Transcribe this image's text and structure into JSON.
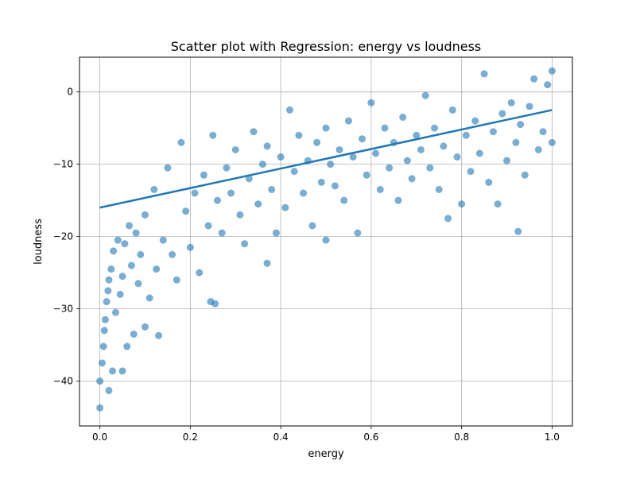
{
  "chart_data": {
    "type": "scatter",
    "title": "Scatter plot with Regression: energy vs loudness",
    "xlabel": "energy",
    "ylabel": "loudness",
    "xlim": [
      -0.045,
      1.045
    ],
    "ylim": [
      -46.2,
      4.8
    ],
    "xticks": [
      0.0,
      0.2,
      0.4,
      0.6,
      0.8,
      1.0
    ],
    "xtick_labels": [
      "0.0",
      "0.2",
      "0.4",
      "0.6",
      "0.8",
      "1.0"
    ],
    "yticks": [
      -40,
      -30,
      -20,
      -10,
      0
    ],
    "ytick_labels": [
      "−40",
      "−30",
      "−20",
      "−10",
      "0"
    ],
    "grid": true,
    "point_color": "#1f77b4",
    "point_alpha": 0.6,
    "regression_color": "#1f77b4",
    "regression_line": {
      "x": [
        0.0,
        1.0
      ],
      "y": [
        -16.0,
        -2.5
      ]
    },
    "points": [
      [
        0.0,
        -43.7
      ],
      [
        0.0,
        -40.0
      ],
      [
        0.005,
        -37.5
      ],
      [
        0.008,
        -35.2
      ],
      [
        0.01,
        -33.0
      ],
      [
        0.012,
        -31.5
      ],
      [
        0.015,
        -29.0
      ],
      [
        0.018,
        -27.5
      ],
      [
        0.02,
        -41.3
      ],
      [
        0.02,
        -26.0
      ],
      [
        0.025,
        -24.5
      ],
      [
        0.028,
        -38.6
      ],
      [
        0.03,
        -22.0
      ],
      [
        0.035,
        -30.5
      ],
      [
        0.04,
        -20.5
      ],
      [
        0.045,
        -28.0
      ],
      [
        0.05,
        -25.5
      ],
      [
        0.05,
        -38.6
      ],
      [
        0.055,
        -21.0
      ],
      [
        0.06,
        -35.2
      ],
      [
        0.065,
        -18.5
      ],
      [
        0.07,
        -24.0
      ],
      [
        0.075,
        -33.5
      ],
      [
        0.08,
        -19.5
      ],
      [
        0.085,
        -26.5
      ],
      [
        0.09,
        -22.5
      ],
      [
        0.1,
        -32.5
      ],
      [
        0.1,
        -17.0
      ],
      [
        0.11,
        -28.5
      ],
      [
        0.12,
        -13.5
      ],
      [
        0.125,
        -24.5
      ],
      [
        0.13,
        -33.7
      ],
      [
        0.14,
        -20.5
      ],
      [
        0.15,
        -10.5
      ],
      [
        0.16,
        -22.5
      ],
      [
        0.17,
        -26.0
      ],
      [
        0.18,
        -7.0
      ],
      [
        0.19,
        -16.5
      ],
      [
        0.2,
        -21.5
      ],
      [
        0.21,
        -14.0
      ],
      [
        0.22,
        -25.0
      ],
      [
        0.23,
        -11.5
      ],
      [
        0.24,
        -18.5
      ],
      [
        0.245,
        -29.0
      ],
      [
        0.25,
        -6.0
      ],
      [
        0.255,
        -29.3
      ],
      [
        0.26,
        -15.0
      ],
      [
        0.27,
        -19.5
      ],
      [
        0.28,
        -10.5
      ],
      [
        0.29,
        -14.0
      ],
      [
        0.3,
        -8.0
      ],
      [
        0.31,
        -17.0
      ],
      [
        0.32,
        -21.0
      ],
      [
        0.33,
        -12.0
      ],
      [
        0.34,
        -5.5
      ],
      [
        0.35,
        -15.5
      ],
      [
        0.36,
        -10.0
      ],
      [
        0.37,
        -23.7
      ],
      [
        0.37,
        -7.5
      ],
      [
        0.38,
        -13.5
      ],
      [
        0.39,
        -19.5
      ],
      [
        0.4,
        -9.0
      ],
      [
        0.41,
        -16.0
      ],
      [
        0.42,
        -2.5
      ],
      [
        0.43,
        -11.0
      ],
      [
        0.44,
        -6.0
      ],
      [
        0.45,
        -14.0
      ],
      [
        0.46,
        -9.5
      ],
      [
        0.47,
        -18.5
      ],
      [
        0.48,
        -7.0
      ],
      [
        0.49,
        -12.5
      ],
      [
        0.5,
        -20.5
      ],
      [
        0.5,
        -5.0
      ],
      [
        0.51,
        -10.0
      ],
      [
        0.52,
        -13.0
      ],
      [
        0.53,
        -8.0
      ],
      [
        0.54,
        -15.0
      ],
      [
        0.55,
        -4.0
      ],
      [
        0.56,
        -9.0
      ],
      [
        0.57,
        -19.5
      ],
      [
        0.58,
        -6.5
      ],
      [
        0.59,
        -11.5
      ],
      [
        0.6,
        -1.5
      ],
      [
        0.61,
        -8.5
      ],
      [
        0.62,
        -13.5
      ],
      [
        0.63,
        -5.0
      ],
      [
        0.64,
        -10.5
      ],
      [
        0.65,
        -7.0
      ],
      [
        0.66,
        -15.0
      ],
      [
        0.67,
        -3.5
      ],
      [
        0.68,
        -9.5
      ],
      [
        0.69,
        -12.0
      ],
      [
        0.7,
        -6.0
      ],
      [
        0.71,
        -8.0
      ],
      [
        0.72,
        -0.5
      ],
      [
        0.73,
        -10.5
      ],
      [
        0.74,
        -5.0
      ],
      [
        0.75,
        -13.5
      ],
      [
        0.76,
        -7.5
      ],
      [
        0.77,
        -17.5
      ],
      [
        0.78,
        -2.5
      ],
      [
        0.79,
        -9.0
      ],
      [
        0.8,
        -15.5
      ],
      [
        0.81,
        -6.0
      ],
      [
        0.82,
        -11.0
      ],
      [
        0.83,
        -4.0
      ],
      [
        0.84,
        -8.5
      ],
      [
        0.85,
        2.5
      ],
      [
        0.86,
        -12.5
      ],
      [
        0.87,
        -5.5
      ],
      [
        0.88,
        -15.5
      ],
      [
        0.89,
        -3.0
      ],
      [
        0.9,
        -9.5
      ],
      [
        0.91,
        -1.5
      ],
      [
        0.92,
        -7.0
      ],
      [
        0.925,
        -19.3
      ],
      [
        0.93,
        -4.5
      ],
      [
        0.94,
        -11.5
      ],
      [
        0.95,
        -2.0
      ],
      [
        0.96,
        1.8
      ],
      [
        0.97,
        -8.0
      ],
      [
        0.98,
        -5.5
      ],
      [
        0.99,
        1.0
      ],
      [
        1.0,
        2.9
      ],
      [
        1.0,
        -7.0
      ]
    ]
  }
}
